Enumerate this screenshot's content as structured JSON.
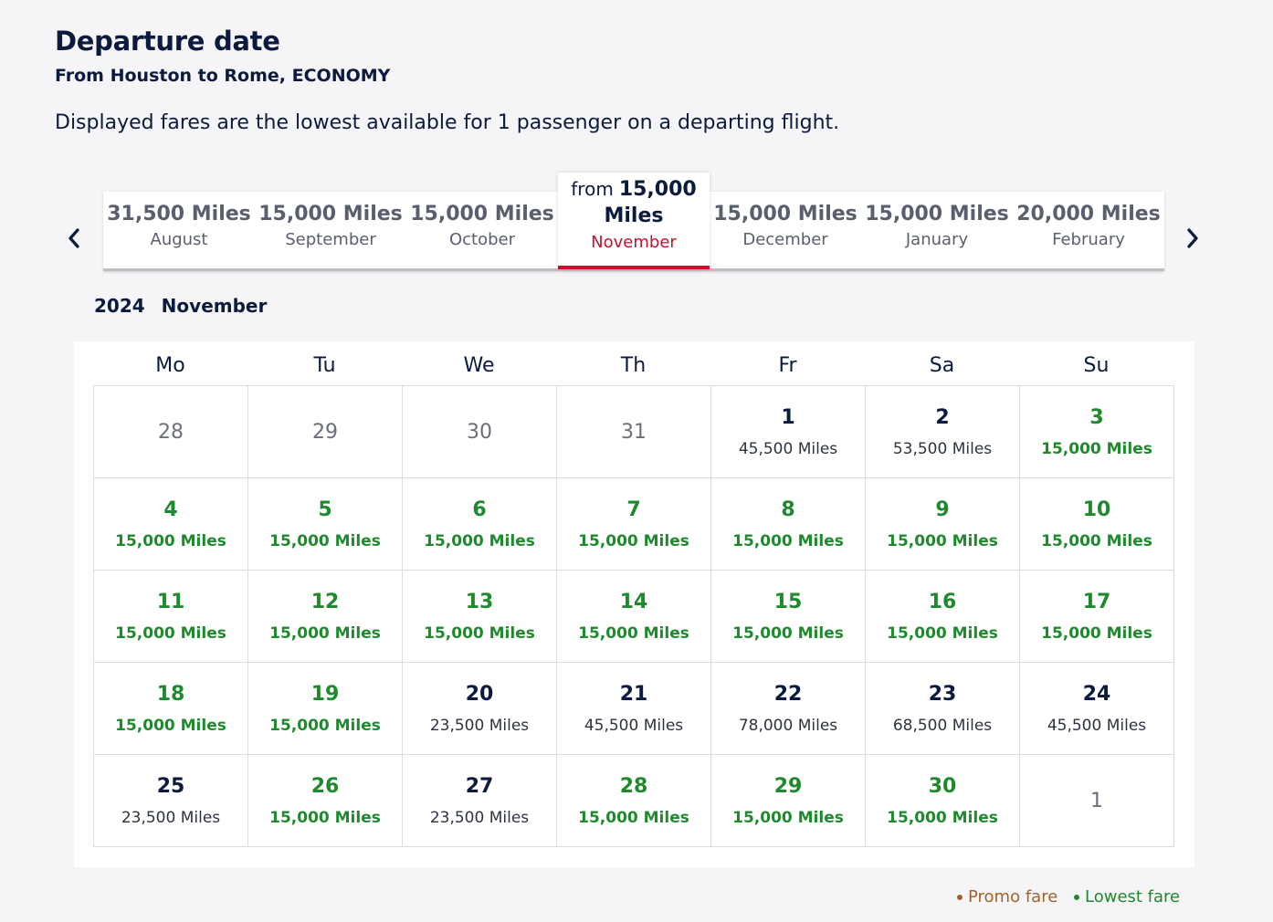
{
  "header": {
    "title": "Departure date",
    "subtitle": "From Houston to Rome, ECONOMY",
    "description": "Displayed fares are the lowest available for 1 passenger on a departing flight."
  },
  "month_nav": {
    "months": [
      {
        "price": "31,500 Miles",
        "name": "August"
      },
      {
        "price": "15,000 Miles",
        "name": "September"
      },
      {
        "price": "15,000 Miles",
        "name": "October"
      },
      {
        "from_label": "from",
        "price_value": "15,000",
        "price_unit": "Miles",
        "name": "November",
        "selected": true
      },
      {
        "price": "15,000 Miles",
        "name": "December"
      },
      {
        "price": "15,000 Miles",
        "name": "January"
      },
      {
        "price": "20,000 Miles",
        "name": "February"
      }
    ]
  },
  "calendar": {
    "year": "2024",
    "month": "November",
    "weekdays": [
      "Mo",
      "Tu",
      "We",
      "Th",
      "Fr",
      "Sa",
      "Su"
    ],
    "cells": [
      {
        "day": "28",
        "other": true
      },
      {
        "day": "29",
        "other": true
      },
      {
        "day": "30",
        "other": true
      },
      {
        "day": "31",
        "other": true
      },
      {
        "day": "1",
        "price": "45,500 Miles"
      },
      {
        "day": "2",
        "price": "53,500 Miles"
      },
      {
        "day": "3",
        "price": "15,000 Miles",
        "lowest": true
      },
      {
        "day": "4",
        "price": "15,000 Miles",
        "lowest": true
      },
      {
        "day": "5",
        "price": "15,000 Miles",
        "lowest": true
      },
      {
        "day": "6",
        "price": "15,000 Miles",
        "lowest": true
      },
      {
        "day": "7",
        "price": "15,000 Miles",
        "lowest": true
      },
      {
        "day": "8",
        "price": "15,000 Miles",
        "lowest": true
      },
      {
        "day": "9",
        "price": "15,000 Miles",
        "lowest": true
      },
      {
        "day": "10",
        "price": "15,000 Miles",
        "lowest": true
      },
      {
        "day": "11",
        "price": "15,000 Miles",
        "lowest": true
      },
      {
        "day": "12",
        "price": "15,000 Miles",
        "lowest": true
      },
      {
        "day": "13",
        "price": "15,000 Miles",
        "lowest": true
      },
      {
        "day": "14",
        "price": "15,000 Miles",
        "lowest": true
      },
      {
        "day": "15",
        "price": "15,000 Miles",
        "lowest": true
      },
      {
        "day": "16",
        "price": "15,000 Miles",
        "lowest": true
      },
      {
        "day": "17",
        "price": "15,000 Miles",
        "lowest": true
      },
      {
        "day": "18",
        "price": "15,000 Miles",
        "lowest": true
      },
      {
        "day": "19",
        "price": "15,000 Miles",
        "lowest": true
      },
      {
        "day": "20",
        "price": "23,500 Miles"
      },
      {
        "day": "21",
        "price": "45,500 Miles"
      },
      {
        "day": "22",
        "price": "78,000 Miles"
      },
      {
        "day": "23",
        "price": "68,500 Miles"
      },
      {
        "day": "24",
        "price": "45,500 Miles"
      },
      {
        "day": "25",
        "price": "23,500 Miles"
      },
      {
        "day": "26",
        "price": "15,000 Miles",
        "lowest": true
      },
      {
        "day": "27",
        "price": "23,500 Miles"
      },
      {
        "day": "28",
        "price": "15,000 Miles",
        "lowest": true
      },
      {
        "day": "29",
        "price": "15,000 Miles",
        "lowest": true
      },
      {
        "day": "30",
        "price": "15,000 Miles",
        "lowest": true
      },
      {
        "day": "1",
        "other": true
      }
    ]
  },
  "legend": {
    "promo": "Promo fare",
    "lowest": "Lowest fare"
  },
  "colors": {
    "lowest_fare": "#1f8a2d",
    "promo_fare": "#a0622a",
    "selected_accent": "#c8102e",
    "text_primary": "#0c1a3d"
  },
  "icons": {
    "prev": "chevron-left-icon",
    "next": "chevron-right-icon"
  }
}
